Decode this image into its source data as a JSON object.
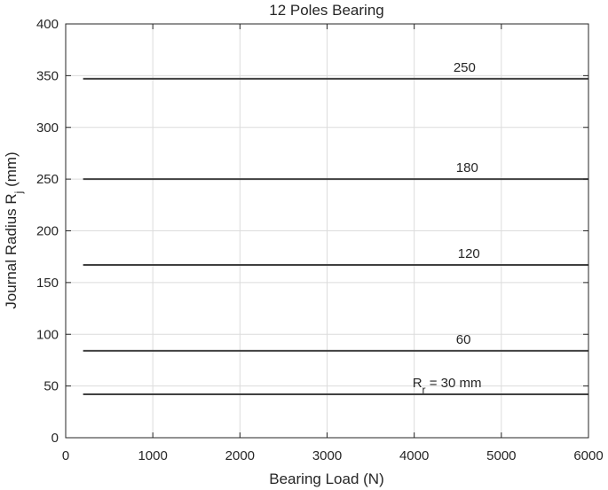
{
  "chart_data": {
    "type": "line",
    "title": "12 Poles Bearing",
    "xlabel": "Bearing Load (N)",
    "ylabel": {
      "main": "Journal Radius R",
      "sub": "j",
      "suffix": " (mm)"
    },
    "xlim": [
      0,
      6000
    ],
    "ylim": [
      0,
      400
    ],
    "xticks": [
      0,
      1000,
      2000,
      3000,
      4000,
      5000,
      6000
    ],
    "yticks": [
      0,
      50,
      100,
      150,
      200,
      250,
      300,
      350,
      400
    ],
    "grid": true,
    "line_color": "#404040",
    "series": [
      {
        "label": "250",
        "label_x": 4450,
        "x": [
          200,
          6000
        ],
        "y": [
          347,
          347
        ]
      },
      {
        "label": "180",
        "label_x": 4480,
        "x": [
          200,
          6000
        ],
        "y": [
          250,
          250
        ]
      },
      {
        "label": "120",
        "label_x": 4500,
        "x": [
          200,
          6000
        ],
        "y": [
          167,
          167
        ]
      },
      {
        "label": "60",
        "label_x": 4480,
        "x": [
          200,
          6000
        ],
        "y": [
          84,
          84
        ]
      },
      {
        "label": {
          "main": "R",
          "sub": "r",
          "suffix": " = 30 mm"
        },
        "label_x": 3980,
        "x": [
          200,
          6000
        ],
        "y": [
          42,
          42
        ]
      }
    ]
  }
}
